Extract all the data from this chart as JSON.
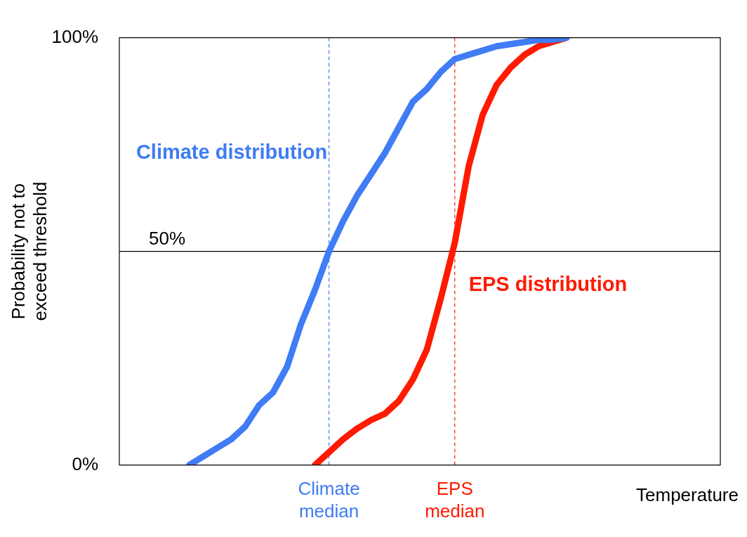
{
  "chart_data": {
    "type": "line",
    "ylabel": "Probability not to exceed threshold",
    "xlabel": "Temperature",
    "categories": [
      null,
      null,
      null,
      null,
      null,
      null,
      null,
      null,
      null,
      null,
      null,
      null,
      null,
      null,
      null,
      "Climate median",
      null,
      null,
      null,
      null,
      null,
      null,
      null,
      null,
      "EPS median",
      null,
      null,
      null,
      null,
      null,
      null,
      null,
      null,
      null,
      null,
      null,
      null,
      null,
      null,
      null,
      null,
      null,
      null,
      null
    ],
    "series": [
      {
        "name": "Climate distribution",
        "color": "#3f7cf5",
        "values": [
          null,
          null,
          null,
          null,
          null,
          0,
          2,
          4,
          6,
          9,
          14,
          17,
          23,
          33,
          41,
          50,
          57,
          63,
          68,
          73,
          79,
          85,
          88,
          92,
          95,
          96,
          97,
          98,
          98.5,
          99,
          99.5,
          99.5,
          100,
          null,
          null,
          null,
          null,
          null,
          null,
          null,
          null,
          null,
          null,
          null
        ]
      },
      {
        "name": "EPS distribution",
        "color": "#ff1a00",
        "values": [
          null,
          null,
          null,
          null,
          null,
          null,
          null,
          null,
          null,
          null,
          null,
          null,
          null,
          null,
          0,
          3,
          6,
          8.5,
          10.5,
          12,
          15,
          20,
          27,
          39,
          52,
          70,
          82,
          89,
          93,
          96,
          98,
          99,
          100,
          null,
          null,
          null,
          null,
          null,
          null,
          null,
          null,
          null,
          null,
          null
        ]
      }
    ],
    "ylim": [
      0,
      100
    ],
    "yticks": [
      {
        "value": 0,
        "label": "0%"
      },
      {
        "value": 100,
        "label": "100%"
      }
    ],
    "ref_lines": [
      {
        "axis": "y",
        "value": 50,
        "label": "50%",
        "color": "#000000",
        "line_style": "solid"
      },
      {
        "axis": "x",
        "value": "Climate median",
        "color": "#3f7cf5",
        "line_style": "dashed"
      },
      {
        "axis": "x",
        "value": "EPS median",
        "color": "#ff1a00",
        "line_style": "dashed"
      }
    ],
    "grid": false,
    "legend": false,
    "marker": "none",
    "line_style": "solid"
  }
}
